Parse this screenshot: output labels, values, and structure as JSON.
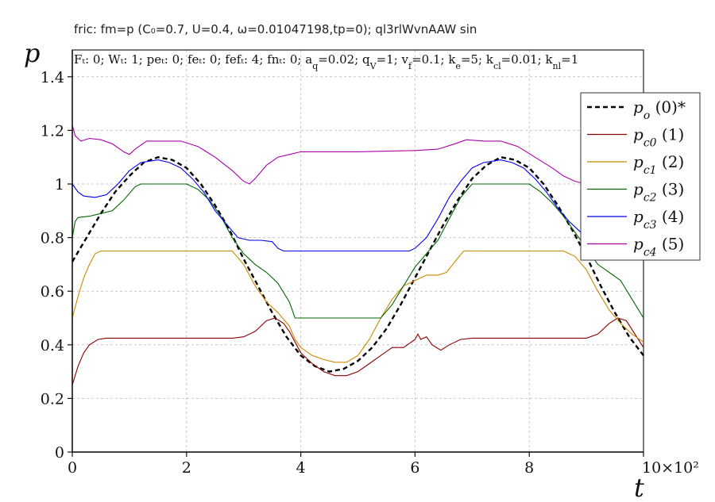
{
  "chart_data": {
    "type": "line",
    "title": "fric: fm=p (C₀=0.7, U=0.4, ω=0.01047198,tp=0); ql3rlWvnAAW sin",
    "params_text": "Fₜ: 0; Wₜ: 1; peₜ: 0; feₜ: 0; fefₜ: 4; fnₜ: 0; a_q=0.02; q_V=1; v_f=0.1; k_e=5; k_cl=0.01; k_nl=1",
    "xlabel": "t",
    "ylabel": "p",
    "x_multiplier": "×10²",
    "xlim": [
      0,
      10
    ],
    "ylim": [
      0,
      1.5
    ],
    "x_ticks": [
      "0",
      "2",
      "4",
      "6",
      "8",
      "10"
    ],
    "y_ticks": [
      "0",
      "0.2",
      "0.4",
      "0.6",
      "0.8",
      "1",
      "1.2",
      "1.4"
    ],
    "grid": true,
    "legend_position": "top-right",
    "series": [
      {
        "name": "p_o (0)*",
        "legend_symbol": "p",
        "legend_sub": "o",
        "legend_suffix": " (0)*",
        "color": "#000000",
        "dashed": true,
        "points": [
          [
            0,
            0.71
          ],
          [
            0.25,
            0.8
          ],
          [
            0.5,
            0.89
          ],
          [
            0.75,
            0.97
          ],
          [
            1.0,
            1.03
          ],
          [
            1.25,
            1.08
          ],
          [
            1.5,
            1.1
          ],
          [
            1.75,
            1.09
          ],
          [
            2.0,
            1.06
          ],
          [
            2.25,
            1.0
          ],
          [
            2.5,
            0.92
          ],
          [
            2.75,
            0.83
          ],
          [
            3.0,
            0.72
          ],
          [
            3.25,
            0.62
          ],
          [
            3.5,
            0.52
          ],
          [
            3.75,
            0.43
          ],
          [
            4.0,
            0.36
          ],
          [
            4.25,
            0.32
          ],
          [
            4.5,
            0.3
          ],
          [
            4.75,
            0.31
          ],
          [
            5.0,
            0.34
          ],
          [
            5.25,
            0.39
          ],
          [
            5.5,
            0.46
          ],
          [
            5.75,
            0.55
          ],
          [
            6.0,
            0.65
          ],
          [
            6.25,
            0.75
          ],
          [
            6.5,
            0.85
          ],
          [
            6.75,
            0.94
          ],
          [
            7.0,
            1.02
          ],
          [
            7.25,
            1.07
          ],
          [
            7.5,
            1.1
          ],
          [
            7.75,
            1.09
          ],
          [
            8.0,
            1.06
          ],
          [
            8.25,
            1.0
          ],
          [
            8.5,
            0.92
          ],
          [
            8.75,
            0.83
          ],
          [
            9.0,
            0.73
          ],
          [
            9.25,
            0.62
          ],
          [
            9.5,
            0.52
          ],
          [
            9.75,
            0.43
          ],
          [
            10.0,
            0.36
          ]
        ]
      },
      {
        "name": "p_c0 (1)",
        "legend_symbol": "p",
        "legend_sub": "c0",
        "legend_suffix": " (1)",
        "color": "#8b0000",
        "dashed": false,
        "points": [
          [
            0,
            0.25
          ],
          [
            0.1,
            0.32
          ],
          [
            0.2,
            0.37
          ],
          [
            0.3,
            0.4
          ],
          [
            0.45,
            0.42
          ],
          [
            0.6,
            0.425
          ],
          [
            1.0,
            0.425
          ],
          [
            2.0,
            0.425
          ],
          [
            2.8,
            0.425
          ],
          [
            3.0,
            0.43
          ],
          [
            3.2,
            0.45
          ],
          [
            3.4,
            0.49
          ],
          [
            3.55,
            0.5
          ],
          [
            3.7,
            0.48
          ],
          [
            3.8,
            0.45
          ],
          [
            3.9,
            0.41
          ],
          [
            4.0,
            0.37
          ],
          [
            4.2,
            0.33
          ],
          [
            4.4,
            0.3
          ],
          [
            4.6,
            0.285
          ],
          [
            4.8,
            0.285
          ],
          [
            5.0,
            0.3
          ],
          [
            5.2,
            0.33
          ],
          [
            5.4,
            0.36
          ],
          [
            5.6,
            0.39
          ],
          [
            5.8,
            0.39
          ],
          [
            6.0,
            0.42
          ],
          [
            6.05,
            0.44
          ],
          [
            6.1,
            0.42
          ],
          [
            6.2,
            0.43
          ],
          [
            6.3,
            0.4
          ],
          [
            6.45,
            0.38
          ],
          [
            6.6,
            0.4
          ],
          [
            6.8,
            0.42
          ],
          [
            7.0,
            0.425
          ],
          [
            8.0,
            0.425
          ],
          [
            9.0,
            0.425
          ],
          [
            9.2,
            0.44
          ],
          [
            9.4,
            0.48
          ],
          [
            9.55,
            0.5
          ],
          [
            9.7,
            0.49
          ],
          [
            9.85,
            0.44
          ],
          [
            10.0,
            0.39
          ]
        ]
      },
      {
        "name": "p_c1 (2)",
        "legend_symbol": "p",
        "legend_sub": "c1",
        "legend_suffix": " (2)",
        "color": "#cc8800",
        "dashed": false,
        "points": [
          [
            0,
            0.5
          ],
          [
            0.1,
            0.58
          ],
          [
            0.2,
            0.65
          ],
          [
            0.3,
            0.7
          ],
          [
            0.4,
            0.74
          ],
          [
            0.5,
            0.75
          ],
          [
            1.0,
            0.75
          ],
          [
            2.0,
            0.75
          ],
          [
            2.8,
            0.75
          ],
          [
            3.0,
            0.7
          ],
          [
            3.2,
            0.62
          ],
          [
            3.4,
            0.56
          ],
          [
            3.6,
            0.52
          ],
          [
            3.8,
            0.47
          ],
          [
            3.9,
            0.42
          ],
          [
            4.0,
            0.39
          ],
          [
            4.2,
            0.36
          ],
          [
            4.4,
            0.345
          ],
          [
            4.6,
            0.335
          ],
          [
            4.8,
            0.335
          ],
          [
            5.0,
            0.36
          ],
          [
            5.2,
            0.42
          ],
          [
            5.4,
            0.5
          ],
          [
            5.6,
            0.57
          ],
          [
            5.8,
            0.62
          ],
          [
            6.0,
            0.64
          ],
          [
            6.2,
            0.66
          ],
          [
            6.4,
            0.66
          ],
          [
            6.55,
            0.67
          ],
          [
            6.7,
            0.71
          ],
          [
            6.85,
            0.75
          ],
          [
            7.0,
            0.75
          ],
          [
            8.0,
            0.75
          ],
          [
            8.6,
            0.75
          ],
          [
            8.8,
            0.73
          ],
          [
            9.0,
            0.68
          ],
          [
            9.2,
            0.6
          ],
          [
            9.4,
            0.53
          ],
          [
            9.6,
            0.48
          ],
          [
            9.8,
            0.44
          ],
          [
            10.0,
            0.41
          ]
        ]
      },
      {
        "name": "p_c2 (3)",
        "legend_symbol": "p",
        "legend_sub": "c2",
        "legend_suffix": " (3)",
        "color": "#006400",
        "dashed": false,
        "points": [
          [
            0,
            0.8
          ],
          [
            0.05,
            0.86
          ],
          [
            0.1,
            0.875
          ],
          [
            0.3,
            0.88
          ],
          [
            0.5,
            0.89
          ],
          [
            0.7,
            0.9
          ],
          [
            0.9,
            0.94
          ],
          [
            1.1,
            0.99
          ],
          [
            1.2,
            1.0
          ],
          [
            2.0,
            1.0
          ],
          [
            2.2,
            0.98
          ],
          [
            2.4,
            0.94
          ],
          [
            2.6,
            0.88
          ],
          [
            2.8,
            0.8
          ],
          [
            3.0,
            0.74
          ],
          [
            3.2,
            0.7
          ],
          [
            3.4,
            0.67
          ],
          [
            3.6,
            0.63
          ],
          [
            3.8,
            0.56
          ],
          [
            3.9,
            0.5
          ],
          [
            4.0,
            0.5
          ],
          [
            5.0,
            0.5
          ],
          [
            5.4,
            0.5
          ],
          [
            5.6,
            0.55
          ],
          [
            5.8,
            0.62
          ],
          [
            6.0,
            0.69
          ],
          [
            6.2,
            0.74
          ],
          [
            6.4,
            0.79
          ],
          [
            6.6,
            0.87
          ],
          [
            6.8,
            0.95
          ],
          [
            7.0,
            1.0
          ],
          [
            8.0,
            1.0
          ],
          [
            8.2,
            0.97
          ],
          [
            8.4,
            0.93
          ],
          [
            8.6,
            0.88
          ],
          [
            8.8,
            0.82
          ],
          [
            9.0,
            0.76
          ],
          [
            9.2,
            0.7
          ],
          [
            9.4,
            0.67
          ],
          [
            9.6,
            0.64
          ],
          [
            9.8,
            0.57
          ],
          [
            10.0,
            0.5
          ]
        ]
      },
      {
        "name": "p_c3 (4)",
        "legend_symbol": "p",
        "legend_sub": "c3",
        "legend_suffix": " (4)",
        "color": "#0000ee",
        "dashed": false,
        "points": [
          [
            0,
            1.0
          ],
          [
            0.1,
            0.97
          ],
          [
            0.2,
            0.955
          ],
          [
            0.4,
            0.95
          ],
          [
            0.6,
            0.96
          ],
          [
            0.8,
            1.0
          ],
          [
            1.0,
            1.05
          ],
          [
            1.2,
            1.08
          ],
          [
            1.5,
            1.09
          ],
          [
            1.7,
            1.08
          ],
          [
            1.9,
            1.06
          ],
          [
            2.1,
            1.02
          ],
          [
            2.3,
            0.97
          ],
          [
            2.5,
            0.9
          ],
          [
            2.7,
            0.85
          ],
          [
            2.9,
            0.8
          ],
          [
            3.1,
            0.79
          ],
          [
            3.3,
            0.79
          ],
          [
            3.5,
            0.785
          ],
          [
            3.6,
            0.76
          ],
          [
            3.7,
            0.75
          ],
          [
            4.0,
            0.75
          ],
          [
            5.0,
            0.75
          ],
          [
            5.9,
            0.75
          ],
          [
            6.0,
            0.76
          ],
          [
            6.2,
            0.8
          ],
          [
            6.4,
            0.87
          ],
          [
            6.6,
            0.95
          ],
          [
            6.8,
            1.01
          ],
          [
            7.0,
            1.06
          ],
          [
            7.2,
            1.08
          ],
          [
            7.5,
            1.09
          ],
          [
            7.7,
            1.08
          ],
          [
            7.9,
            1.06
          ],
          [
            8.1,
            1.02
          ],
          [
            8.3,
            0.97
          ],
          [
            8.5,
            0.91
          ],
          [
            8.7,
            0.86
          ],
          [
            8.9,
            0.82
          ],
          [
            9.1,
            0.79
          ],
          [
            9.3,
            0.79
          ],
          [
            9.5,
            0.79
          ],
          [
            9.6,
            0.77
          ],
          [
            9.7,
            0.75
          ],
          [
            10.0,
            0.75
          ]
        ]
      },
      {
        "name": "p_c4 (5)",
        "legend_symbol": "p",
        "legend_sub": "c4",
        "legend_suffix": " (5)",
        "color": "#aa00aa",
        "dashed": false,
        "points": [
          [
            0,
            1.22
          ],
          [
            0.05,
            1.18
          ],
          [
            0.15,
            1.16
          ],
          [
            0.3,
            1.17
          ],
          [
            0.5,
            1.165
          ],
          [
            0.7,
            1.15
          ],
          [
            0.9,
            1.12
          ],
          [
            1.0,
            1.11
          ],
          [
            1.1,
            1.13
          ],
          [
            1.3,
            1.16
          ],
          [
            1.6,
            1.16
          ],
          [
            1.9,
            1.16
          ],
          [
            2.2,
            1.14
          ],
          [
            2.5,
            1.1
          ],
          [
            2.8,
            1.05
          ],
          [
            3.0,
            1.01
          ],
          [
            3.1,
            1.0
          ],
          [
            3.2,
            1.02
          ],
          [
            3.4,
            1.07
          ],
          [
            3.6,
            1.1
          ],
          [
            3.8,
            1.11
          ],
          [
            4.0,
            1.12
          ],
          [
            5.0,
            1.12
          ],
          [
            6.0,
            1.125
          ],
          [
            6.4,
            1.13
          ],
          [
            6.7,
            1.15
          ],
          [
            6.9,
            1.165
          ],
          [
            7.2,
            1.16
          ],
          [
            7.5,
            1.16
          ],
          [
            7.8,
            1.14
          ],
          [
            8.1,
            1.1
          ],
          [
            8.4,
            1.06
          ],
          [
            8.6,
            1.03
          ],
          [
            8.8,
            1.01
          ],
          [
            9.0,
            1.0
          ]
        ]
      }
    ]
  }
}
